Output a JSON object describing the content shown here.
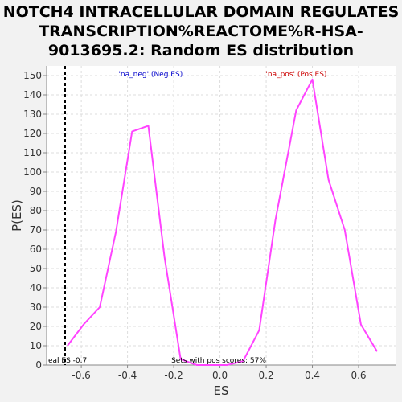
{
  "chart_data": {
    "type": "line",
    "title_lines": [
      "NOTCH4 INTRACELLULAR DOMAIN REGULATES",
      "TRANSCRIPTION%REACTOME%R-HSA-",
      "9013695.2: Random ES distribution"
    ],
    "xlabel": "ES",
    "ylabel": "P(ES)",
    "xlim": [
      -0.75,
      0.76
    ],
    "ylim": [
      0,
      155
    ],
    "x_ticks": [
      -0.6,
      -0.4,
      -0.2,
      0.0,
      0.2,
      0.4,
      0.6
    ],
    "x_tick_labels": [
      "-0.6",
      "-0.4",
      "-0.2",
      "0.0",
      "0.2",
      "0.4",
      "0.6"
    ],
    "y_ticks": [
      0,
      10,
      20,
      30,
      40,
      50,
      60,
      70,
      80,
      90,
      100,
      110,
      120,
      130,
      140,
      150
    ],
    "grid": true,
    "line_color": "#ff44ff",
    "series": [
      {
        "x": [
          -0.66,
          -0.59,
          -0.52,
          -0.45,
          -0.38,
          -0.31,
          -0.24,
          -0.17,
          -0.1,
          -0.03,
          0.03,
          0.1,
          0.17,
          0.24,
          0.33,
          0.4,
          0.47,
          0.54,
          0.61,
          0.68
        ],
        "y": [
          10,
          21,
          30,
          69,
          121,
          124,
          56,
          3,
          0,
          0,
          0,
          2,
          18,
          75,
          132,
          148,
          96,
          70,
          21,
          7
        ]
      }
    ],
    "observed_es": -0.67,
    "annotations": {
      "neg_label": "'na_neg' (Neg ES)",
      "neg_color": "#0000cc",
      "pos_label": "'na_pos' (Pos ES)",
      "pos_color": "#cc0000",
      "real_es": "eal ES -0.7",
      "pos_scores": "Sets with pos scores: 57%"
    }
  }
}
